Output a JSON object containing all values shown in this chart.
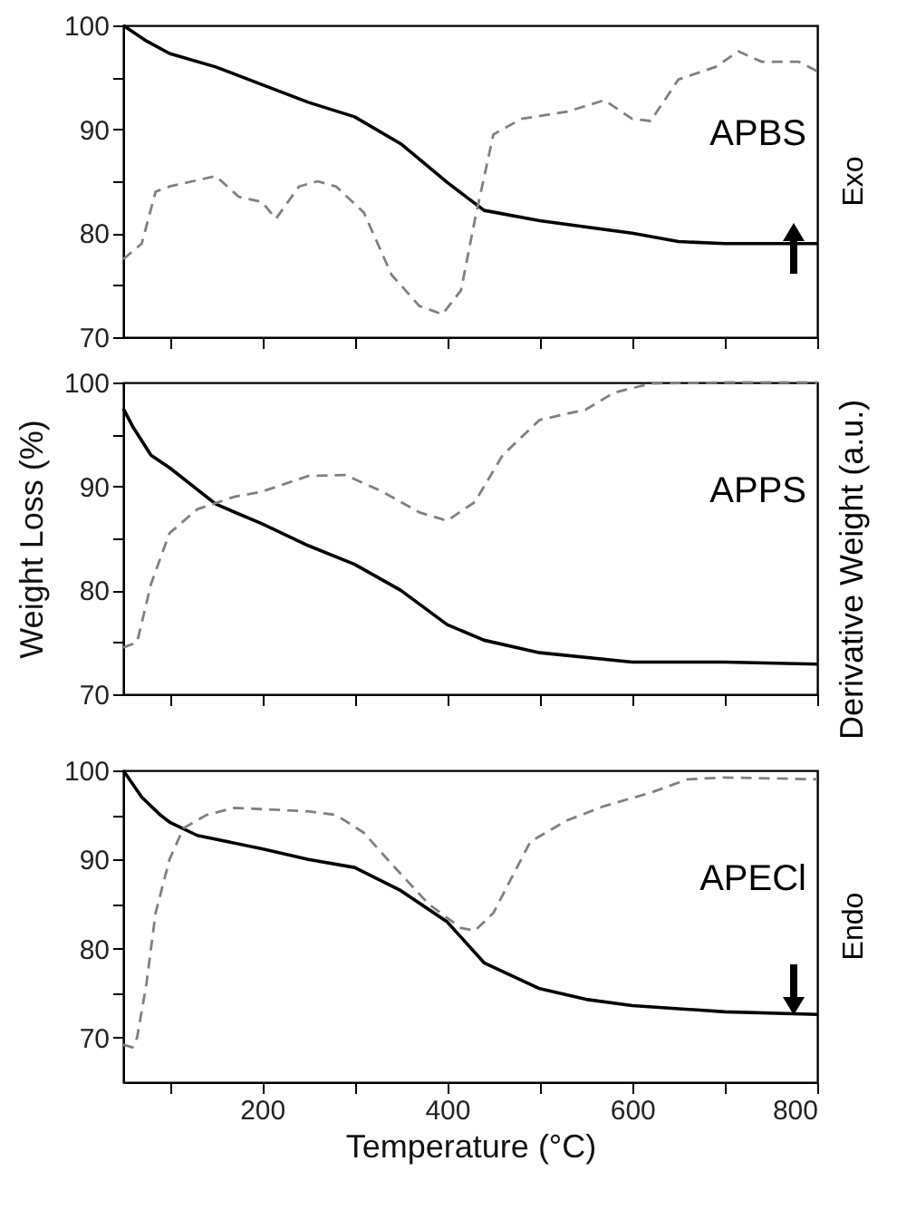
{
  "chart_data": [
    {
      "type": "line",
      "xlim": [
        50,
        800
      ],
      "ylim": [
        70,
        100
      ],
      "tick_labels": "y",
      "grid": false,
      "xticks": [
        {
          "value": 100,
          "label": null
        },
        {
          "value": 200,
          "label": null
        },
        {
          "value": 300,
          "label": null
        },
        {
          "value": 400,
          "label": null
        },
        {
          "value": 500,
          "label": null
        },
        {
          "value": 600,
          "label": null
        },
        {
          "value": 700,
          "label": null
        },
        {
          "value": 800,
          "label": null
        }
      ],
      "yticks": [
        70,
        {
          "value": 75,
          "label": null
        },
        80,
        {
          "value": 85,
          "label": null
        },
        90,
        {
          "value": 95,
          "label": null
        },
        100
      ],
      "annotations": [
        "APBS",
        "Exo"
      ],
      "series": [
        {
          "color": "#000000",
          "line_style": "solid",
          "x": [
            50,
            75,
            100,
            150,
            200,
            250,
            300,
            350,
            400,
            440,
            500,
            600,
            650,
            700,
            800
          ],
          "values": [
            100,
            98.5,
            97.3,
            96,
            94.3,
            92.6,
            91.2,
            88.6,
            84.9,
            82.2,
            81.2,
            80,
            79.2,
            79,
            79
          ]
        },
        {
          "color": "#808080",
          "line_style": "dashed",
          "x": [
            50,
            70,
            85,
            100,
            150,
            175,
            200,
            215,
            240,
            260,
            280,
            310,
            340,
            370,
            395,
            415,
            430,
            450,
            480,
            530,
            570,
            600,
            620,
            650,
            690,
            715,
            740,
            780,
            800
          ],
          "values": [
            77.5,
            79,
            84,
            84.5,
            85.5,
            83.5,
            83,
            81.4,
            84.5,
            85,
            84.5,
            82,
            76,
            73,
            72.2,
            74.5,
            81.3,
            89.5,
            91,
            91.7,
            92.8,
            91,
            90.8,
            94.8,
            96,
            97.5,
            96.5,
            96.5,
            95.6
          ]
        }
      ]
    },
    {
      "type": "line",
      "xlim": [
        50,
        800
      ],
      "ylim": [
        70,
        100
      ],
      "tick_labels": "y",
      "grid": false,
      "ylabel": "Weight Loss (%)",
      "y2label": "Derivative Weight (a.u.)",
      "xticks": [
        {
          "value": 100,
          "label": null
        },
        {
          "value": 200,
          "label": null
        },
        {
          "value": 300,
          "label": null
        },
        {
          "value": 400,
          "label": null
        },
        {
          "value": 500,
          "label": null
        },
        {
          "value": 600,
          "label": null
        },
        {
          "value": 700,
          "label": null
        },
        {
          "value": 800,
          "label": null
        }
      ],
      "yticks": [
        70,
        {
          "value": 75,
          "label": null
        },
        80,
        {
          "value": 85,
          "label": null
        },
        90,
        {
          "value": 95,
          "label": null
        },
        100
      ],
      "annotations": [
        "APPS"
      ],
      "series": [
        {
          "color": "#000000",
          "line_style": "solid",
          "x": [
            50,
            60,
            80,
            100,
            150,
            200,
            250,
            300,
            350,
            400,
            440,
            500,
            600,
            700,
            800
          ],
          "values": [
            97.5,
            95.8,
            93,
            91.8,
            88.3,
            86.4,
            84.3,
            82.5,
            80,
            76.7,
            75.2,
            74,
            73.1,
            73.1,
            72.9
          ]
        },
        {
          "color": "#808080",
          "line_style": "dashed",
          "x": [
            50,
            65,
            80,
            100,
            130,
            170,
            200,
            250,
            290,
            330,
            370,
            400,
            430,
            460,
            500,
            550,
            580,
            620,
            700,
            800
          ],
          "values": [
            74.5,
            75,
            80.6,
            85.5,
            87.8,
            89,
            89.5,
            91,
            91.1,
            89.5,
            87.5,
            86.7,
            88.5,
            93,
            96.4,
            97.4,
            99,
            99.9,
            100,
            100
          ]
        }
      ]
    },
    {
      "type": "line",
      "xlim": [
        50,
        800
      ],
      "ylim": [
        65,
        100
      ],
      "grid": false,
      "xlabel": "Temperature (°C)",
      "xticks": [
        {
          "value": 100,
          "label": null
        },
        200,
        {
          "value": 300,
          "label": null
        },
        400,
        {
          "value": 500,
          "label": null
        },
        600,
        {
          "value": 700,
          "label": null
        },
        800
      ],
      "yticks": [
        70,
        {
          "value": 75,
          "label": null
        },
        80,
        {
          "value": 85,
          "label": null
        },
        90,
        {
          "value": 95,
          "label": null
        },
        100
      ],
      "annotations": [
        "APECl",
        "Endo"
      ],
      "series": [
        {
          "color": "#000000",
          "line_style": "solid",
          "x": [
            50,
            70,
            90,
            100,
            130,
            200,
            250,
            300,
            350,
            400,
            440,
            500,
            550,
            600,
            700,
            800
          ],
          "values": [
            100,
            97,
            95,
            94.2,
            92.7,
            91.2,
            90,
            89.1,
            86.5,
            83,
            78.4,
            75.5,
            74.3,
            73.6,
            72.9,
            72.6
          ]
        },
        {
          "color": "#808080",
          "line_style": "dashed",
          "x": [
            50,
            60,
            65,
            75,
            85,
            100,
            115,
            140,
            170,
            250,
            280,
            310,
            340,
            380,
            415,
            430,
            450,
            470,
            490,
            530,
            570,
            620,
            660,
            700,
            800
          ],
          "values": [
            69.2,
            68.9,
            70,
            76,
            84,
            90,
            93.5,
            95,
            95.8,
            95.4,
            95,
            93,
            89.5,
            85,
            82.3,
            82,
            84,
            88,
            92,
            94.4,
            96,
            97.5,
            99,
            99.2,
            99
          ]
        }
      ]
    }
  ]
}
